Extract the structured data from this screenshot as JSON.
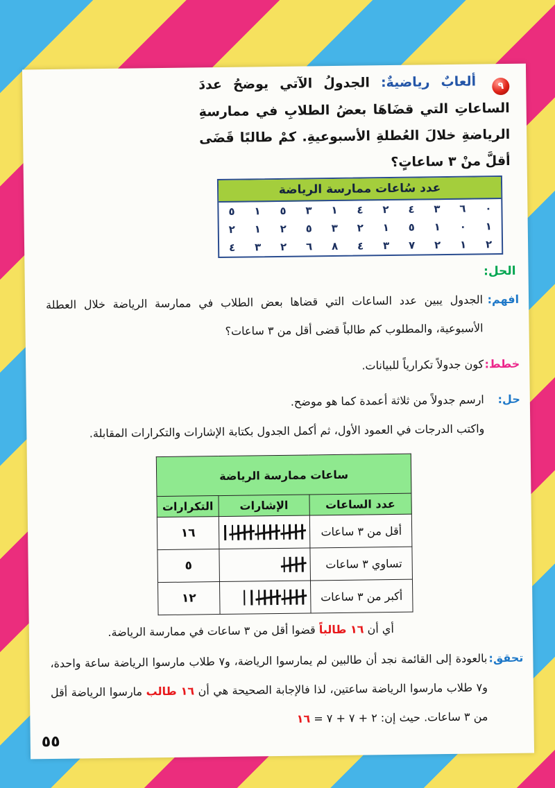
{
  "page_number": "٥٥",
  "problem": {
    "number": "٩",
    "title": "ألعابٌ رياضيةٌ:",
    "text": "الجدولُ الآتي يوضحُ عددَ الساعاتِ التي قضَاهَا بعضُ الطلابِ في ممارسةِ الرياضةِ خلالَ العُطلةِ الأسبوعيةِ. كمْ طالبًا قَضَى أقلَّ منْ ٣ ساعاتٍ؟"
  },
  "data_table": {
    "title": "عدد سُاعات ممارسة الرياضة",
    "rows": [
      [
        "٠",
        "٦",
        "٣",
        "٤",
        "٢",
        "٤",
        "١",
        "٣",
        "٥",
        "١",
        "٥"
      ],
      [
        "١",
        "٠",
        "١",
        "٥",
        "١",
        "٢",
        "٣",
        "٥",
        "٢",
        "١",
        "٢"
      ],
      [
        "٢",
        "١",
        "٢",
        "٧",
        "٣",
        "٤",
        "٨",
        "٦",
        "٢",
        "٣",
        "٤"
      ]
    ]
  },
  "solution": {
    "heading": "الحل:",
    "steps": [
      {
        "label": "افهم:",
        "text": "الجدول يبين عدد الساعات التي قضاها بعض الطلاب في ممارسة الرياضة خلال العطلة الأسبوعية، والمطلوب كم طالباً قضى أقل من ٣ ساعات؟"
      },
      {
        "label": "خطط:",
        "text": "كون جدولاً تكرارياً للبيانات."
      },
      {
        "label": "حل:",
        "text": "ارسم جدولاً من ثلاثة أعمدة كما هو موضح.",
        "text2": "واكتب الدرجات في العمود الأول، ثم أكمل الجدول بكتابة الإشارات والتكرارات المقابلة."
      }
    ]
  },
  "frequency_table": {
    "title": "ساعات ممارسة الرياضة",
    "columns": [
      "عدد الساعات",
      "الإشارات",
      "التكرارات"
    ],
    "rows": [
      {
        "category": "أقل من ٣ ساعات",
        "tally_groups_of_five": 3,
        "tally_singles": 1,
        "frequency": "١٦"
      },
      {
        "category": "تساوي ٣ ساعات",
        "tally_groups_of_five": 1,
        "tally_singles": 0,
        "frequency": "٥"
      },
      {
        "category": "أكبر من ٣ ساعات",
        "tally_groups_of_five": 2,
        "tally_singles": 2,
        "frequency": "١٢"
      }
    ]
  },
  "result": {
    "pre": "أي أن ",
    "highlight": "١٦ طالباً",
    "post": " قضوا أقل من ٣ ساعات في ممارسة الرياضة."
  },
  "verify": {
    "label": "تحقق:",
    "part1": "بالعودة إلى القائمة نجد أن طالبين لم يمارسوا الرياضة، و٧ طلاب مارسوا الرياضة ساعة واحدة، و٧ طلاب مارسوا الرياضة ساعتين، لذا فالإجابة الصحيحة هي أن ",
    "highlight1": "١٦ طالب",
    "part2": " مارسوا الرياضة أقل من ٣ ساعات. حيث إن: ٢ + ٧ + ٧ = ",
    "highlight2": "١٦"
  },
  "colors": {
    "stripe_blue": "#45B4E8",
    "stripe_yellow": "#F6E15E",
    "stripe_pink": "#EB2D7D",
    "table1_header_green": "#A4CE3C",
    "table1_border_navy": "#2A4C8F",
    "table2_header_green": "#8FE98F",
    "label_green": "#00A651",
    "label_blue": "#1E78C8",
    "label_pink": "#EC268B",
    "highlight_red": "#E8191C"
  }
}
